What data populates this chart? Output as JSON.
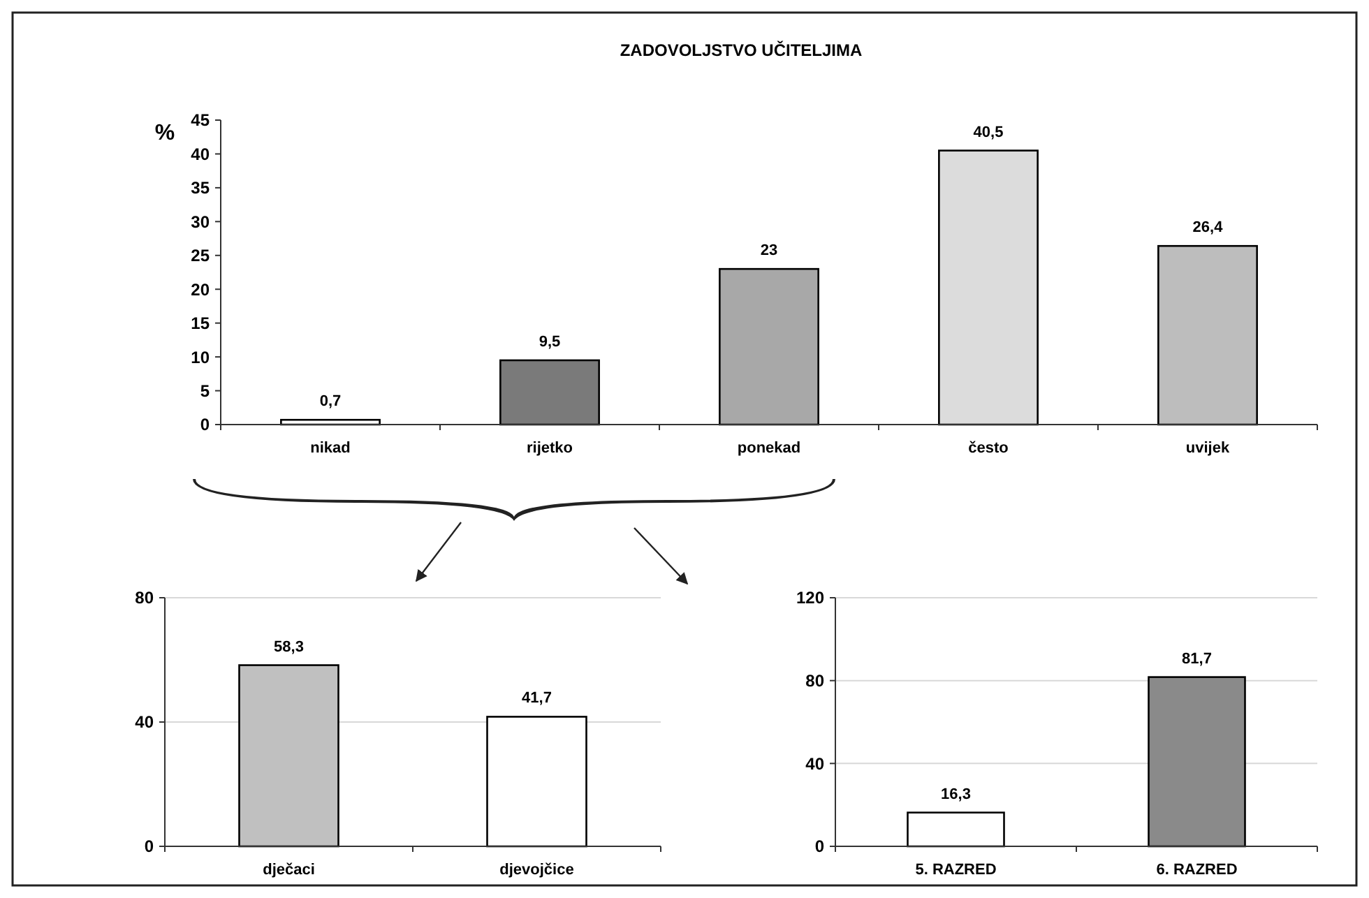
{
  "chart_data": [
    {
      "type": "bar",
      "title": "ZADOVOLJSTVO UČITELJIMA",
      "ylabel": "%",
      "categories": [
        "nikad",
        "rijetko",
        "ponekad",
        "često",
        "uvijek"
      ],
      "values": [
        0.7,
        9.5,
        23,
        40.5,
        26.4
      ],
      "value_labels": [
        "0,7",
        "9,5",
        "23",
        "40,5",
        "26,4"
      ],
      "colors": [
        "#ffffff",
        "#7a7a7a",
        "#a8a8a8",
        "#dcdcdc",
        "#bdbdbd"
      ],
      "ylim": [
        0,
        45
      ],
      "yticks": [
        0,
        5,
        10,
        15,
        20,
        25,
        30,
        35,
        40,
        45
      ],
      "grid": false
    },
    {
      "type": "bar",
      "categories": [
        "dječaci",
        "djevojčice"
      ],
      "values": [
        58.3,
        41.7
      ],
      "value_labels": [
        "58,3",
        "41,7"
      ],
      "colors": [
        "#c0c0c0",
        "#ffffff"
      ],
      "ylim": [
        0,
        80
      ],
      "yticks": [
        0,
        40,
        80
      ],
      "grid": "y"
    },
    {
      "type": "bar",
      "categories": [
        "5. RAZRED",
        "6. RAZRED"
      ],
      "values": [
        16.3,
        81.7
      ],
      "value_labels": [
        "16,3",
        "81,7"
      ],
      "colors": [
        "#ffffff",
        "#8a8a8a"
      ],
      "ylim": [
        0,
        120
      ],
      "yticks": [
        0,
        40,
        80,
        120
      ],
      "grid": "y"
    }
  ]
}
